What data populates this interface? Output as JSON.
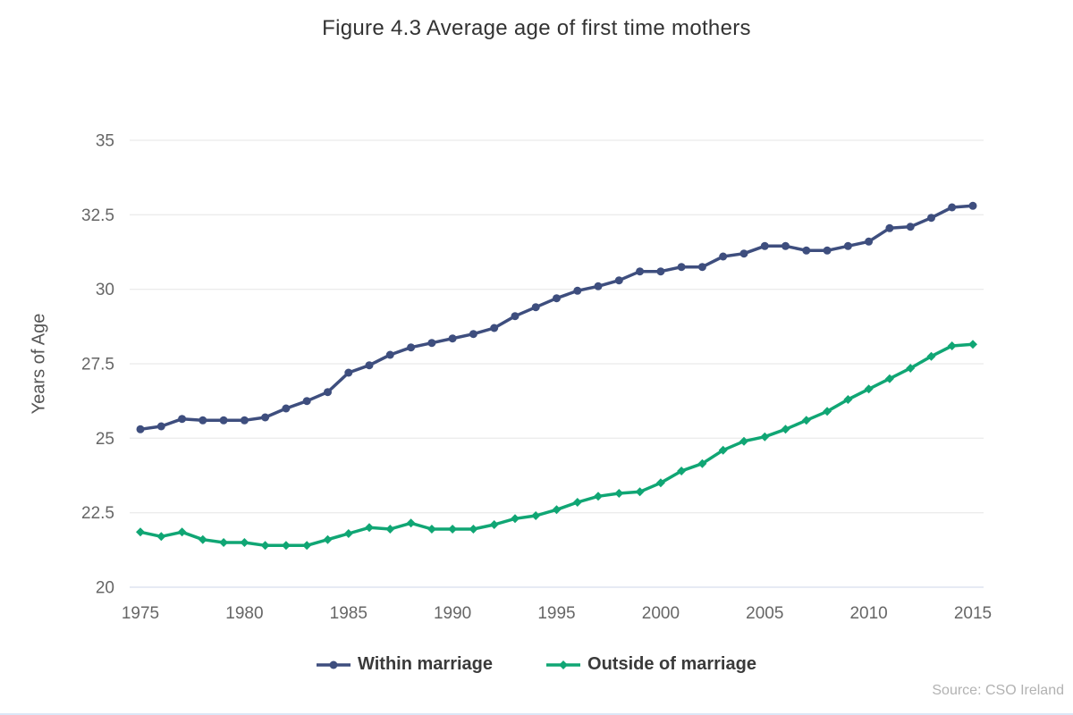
{
  "chart_data": {
    "type": "line",
    "title": "Figure 4.3 Average age of first time mothers",
    "ylabel": "Years of Age",
    "xlabel": "",
    "source": "Source: CSO Ireland",
    "ylim": [
      20,
      35
    ],
    "y_ticks": [
      35,
      32.5,
      30,
      27.5,
      25,
      22.5,
      20
    ],
    "x_ticks": [
      1975,
      1980,
      1985,
      1990,
      1995,
      2000,
      2005,
      2010,
      2015
    ],
    "grid": "horizontal-only",
    "legend_position": "bottom-center",
    "x": [
      1975,
      1976,
      1977,
      1978,
      1979,
      1980,
      1981,
      1982,
      1983,
      1984,
      1985,
      1986,
      1987,
      1988,
      1989,
      1990,
      1991,
      1992,
      1993,
      1994,
      1995,
      1996,
      1997,
      1998,
      1999,
      2000,
      2001,
      2002,
      2003,
      2004,
      2005,
      2006,
      2007,
      2008,
      2009,
      2010,
      2011,
      2012,
      2013,
      2014,
      2015
    ],
    "series": [
      {
        "name": "Within marriage",
        "color": "#3e4e7e",
        "marker": "circle",
        "values": [
          25.3,
          25.4,
          25.65,
          25.6,
          25.6,
          25.6,
          25.7,
          26.0,
          26.25,
          26.55,
          27.2,
          27.45,
          27.8,
          28.05,
          28.2,
          28.35,
          28.5,
          28.7,
          29.1,
          29.4,
          29.7,
          29.95,
          30.1,
          30.3,
          30.6,
          30.6,
          30.75,
          30.75,
          31.1,
          31.2,
          31.45,
          31.45,
          31.3,
          31.3,
          31.45,
          31.6,
          32.05,
          32.1,
          32.4,
          32.75,
          32.8
        ]
      },
      {
        "name": "Outside of marriage",
        "color": "#10a674",
        "marker": "diamond",
        "values": [
          21.85,
          21.7,
          21.85,
          21.6,
          21.5,
          21.5,
          21.4,
          21.4,
          21.4,
          21.6,
          21.8,
          22.0,
          21.95,
          22.15,
          21.95,
          21.95,
          21.95,
          22.1,
          22.3,
          22.4,
          22.6,
          22.85,
          23.05,
          23.15,
          23.2,
          23.5,
          23.9,
          24.15,
          24.6,
          24.9,
          25.05,
          25.3,
          25.6,
          25.9,
          26.3,
          26.65,
          27.0,
          27.35,
          27.75,
          28.1,
          28.15
        ]
      }
    ],
    "colors": {
      "grid_line": "#e6e6e6",
      "axis_line": "#ccd6ea",
      "tick_label": "#666666",
      "title_text": "#333333",
      "axis_title_text": "#555555",
      "legend_text": "#3a3a3a",
      "source_text": "#b2b2b2"
    }
  }
}
